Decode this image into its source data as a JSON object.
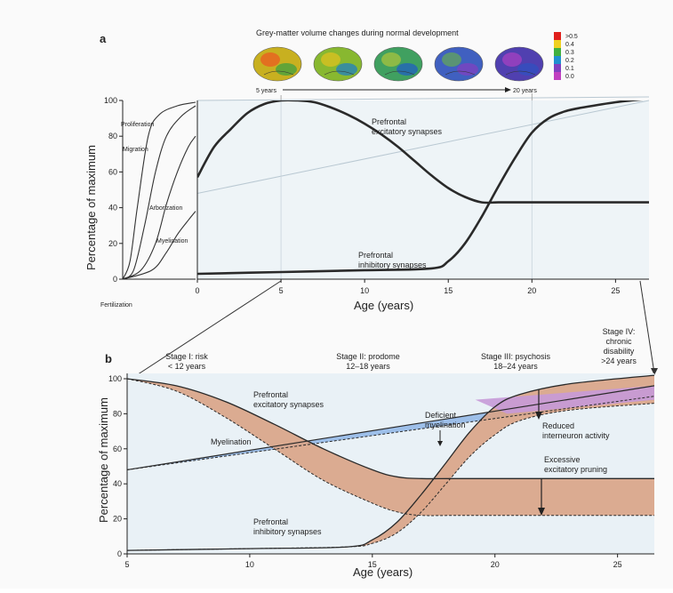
{
  "panel_a": {
    "letter": "a",
    "strip_title": "Grey-matter volume changes during normal development",
    "strip_start": "5 years",
    "strip_end": "20 years",
    "colorbar_labels": [
      ">0.5",
      "0.4",
      "0.3",
      "0.2",
      "0.1",
      "0.0"
    ],
    "colorbar_colors": [
      "#e0201c",
      "#f0d020",
      "#40b040",
      "#2090d0",
      "#8040c0",
      "#c040c0"
    ],
    "brain_colors": [
      {
        "base": "#c8b020",
        "spot": "#e86020",
        "edge": "#40a040"
      },
      {
        "base": "#88b830",
        "spot": "#d8c020",
        "edge": "#2080c0"
      },
      {
        "base": "#40a060",
        "spot": "#a0c040",
        "edge": "#2060c0"
      },
      {
        "base": "#4060c0",
        "spot": "#60a060",
        "edge": "#8040c0"
      },
      {
        "base": "#5040b0",
        "spot": "#a040c0",
        "edge": "#3050c0"
      }
    ],
    "ylabel": "Percentage of maximum",
    "xlabel": "Age (years)",
    "fertilization_label": "Fertilization",
    "process_labels": {
      "proliferation": "Proliferation",
      "migration": "Migration",
      "arborization": "Arborization",
      "myelination": "Myelination"
    },
    "curve_labels": {
      "excitatory": [
        "Prefrontal",
        "excitatory synapses"
      ],
      "inhibitory": [
        "Prefrontal",
        "inhibitory synapses"
      ]
    }
  },
  "panel_b": {
    "letter": "b",
    "ylabel": "Percentage of maximum",
    "xlabel": "Age (years)",
    "stages": [
      [
        "Stage I: risk",
        "< 12 years"
      ],
      [
        "Stage II: prodome",
        "12–18 years"
      ],
      [
        "Stage III: psychosis",
        "18–24 years"
      ],
      [
        "Stage IV:",
        "chronic",
        "disability",
        ">24 years"
      ]
    ],
    "annotations": {
      "excitatory": [
        "Prefrontal",
        "excitatory synapses"
      ],
      "myelination": "Myelination",
      "deficient": [
        "Deficient",
        "myelination"
      ],
      "reduced": [
        "Reduced",
        "interneuron activity"
      ],
      "pruning": [
        "Excessive",
        "excitatory pruning"
      ],
      "inhibitory": [
        "Prefrontal",
        "inhibitory synapses"
      ]
    },
    "colors": {
      "excitatory_band": "#d9a386",
      "myelination_band": "#8fb6e6",
      "deficient_band": "#c79ad8",
      "background": "#e9f1f6"
    }
  },
  "chart_data": [
    {
      "type": "line",
      "panel": "a",
      "xlabel": "Age (years)",
      "ylabel": "Percentage of maximum",
      "xlim": [
        0,
        27
      ],
      "ylim": [
        0,
        100
      ],
      "x_ticks": [
        0,
        5,
        10,
        15,
        20,
        25
      ],
      "y_ticks": [
        0,
        20,
        40,
        60,
        80,
        100
      ],
      "prenatal_series": [
        {
          "name": "Proliferation",
          "values": [
            [
              0,
              0
            ],
            [
              0.1,
              10
            ],
            [
              0.2,
              40
            ],
            [
              0.35,
              80
            ],
            [
              0.5,
              92
            ],
            [
              0.75,
              97
            ],
            [
              1.0,
              99
            ]
          ]
        },
        {
          "name": "Migration",
          "values": [
            [
              0,
              0
            ],
            [
              0.15,
              5
            ],
            [
              0.3,
              30
            ],
            [
              0.45,
              60
            ],
            [
              0.6,
              80
            ],
            [
              0.8,
              91
            ],
            [
              1.0,
              97
            ]
          ]
        },
        {
          "name": "Arborization",
          "values": [
            [
              0,
              0
            ],
            [
              0.25,
              5
            ],
            [
              0.45,
              20
            ],
            [
              0.6,
              42
            ],
            [
              0.75,
              60
            ],
            [
              0.9,
              74
            ],
            [
              1.0,
              80
            ]
          ]
        },
        {
          "name": "Myelination",
          "values": [
            [
              0,
              0
            ],
            [
              0.4,
              5
            ],
            [
              0.6,
              15
            ],
            [
              0.75,
              25
            ],
            [
              0.9,
              33
            ],
            [
              1.0,
              38
            ]
          ]
        }
      ],
      "series": [
        {
          "name": "Prefrontal excitatory synapses",
          "x": [
            0,
            1,
            2,
            3,
            4,
            5,
            6,
            7,
            8,
            9,
            10,
            11,
            12,
            13,
            14,
            15,
            16,
            17,
            18,
            20,
            22,
            27
          ],
          "values": [
            57,
            74,
            84,
            93,
            98,
            100,
            100,
            99,
            96,
            92,
            87,
            81,
            74,
            66,
            58,
            51,
            46,
            43,
            43,
            43,
            43,
            43
          ]
        },
        {
          "name": "Prefrontal inhibitory synapses",
          "x": [
            0,
            5,
            10,
            14,
            15,
            16,
            17,
            18,
            19,
            20,
            21,
            22,
            23,
            25,
            27
          ],
          "values": [
            3,
            4,
            5,
            6,
            10,
            20,
            35,
            52,
            68,
            82,
            90,
            94,
            96,
            99,
            101
          ]
        },
        {
          "values": [
            [
              0,
              48
            ],
            [
              27,
              100
            ]
          ]
        },
        {
          "values": [
            [
              0,
              100
            ],
            [
              27,
              102
            ]
          ]
        }
      ]
    },
    {
      "type": "area",
      "panel": "b",
      "xlabel": "Age (years)",
      "ylabel": "Percentage of maximum",
      "xlim": [
        5,
        26.5
      ],
      "ylim": [
        0,
        100
      ],
      "x_ticks": [
        5,
        10,
        15,
        20,
        25
      ],
      "y_ticks": [
        0,
        20,
        40,
        60,
        80,
        100
      ],
      "series": [
        {
          "name": "Prefrontal excitatory synapses",
          "x": [
            5,
            7,
            9,
            11,
            13,
            15,
            16,
            17,
            19,
            26.5
          ],
          "values": [
            100,
            96,
            87,
            74,
            60,
            48,
            44,
            43,
            43,
            43
          ]
        },
        {
          "name": "Excessive excitatory pruning",
          "x": [
            5,
            7,
            9,
            11,
            13,
            15,
            16,
            17,
            19,
            26.5
          ],
          "values": [
            100,
            93,
            78,
            60,
            42,
            29,
            24,
            22,
            22,
            22
          ]
        },
        {
          "name": "Prefrontal inhibitory synapses",
          "x": [
            5,
            10,
            14,
            15,
            16,
            17,
            18,
            19,
            20,
            21,
            23,
            26.5
          ],
          "values": [
            2,
            3,
            4,
            8,
            18,
            34,
            52,
            70,
            84,
            91,
            97,
            102
          ]
        },
        {
          "name": "Reduced interneuron activity",
          "x": [
            5,
            10,
            14,
            15,
            16,
            17,
            18,
            19,
            20,
            21,
            23,
            26.5
          ],
          "values": [
            2,
            3,
            4,
            6,
            12,
            24,
            40,
            56,
            68,
            76,
            82,
            86
          ]
        },
        {
          "name": "Myelination",
          "x": [
            5,
            26.5
          ],
          "values": [
            48,
            96
          ]
        },
        {
          "name": "Deficient myelination",
          "x": [
            5,
            26.5
          ],
          "values": [
            48,
            90
          ]
        }
      ]
    }
  ]
}
